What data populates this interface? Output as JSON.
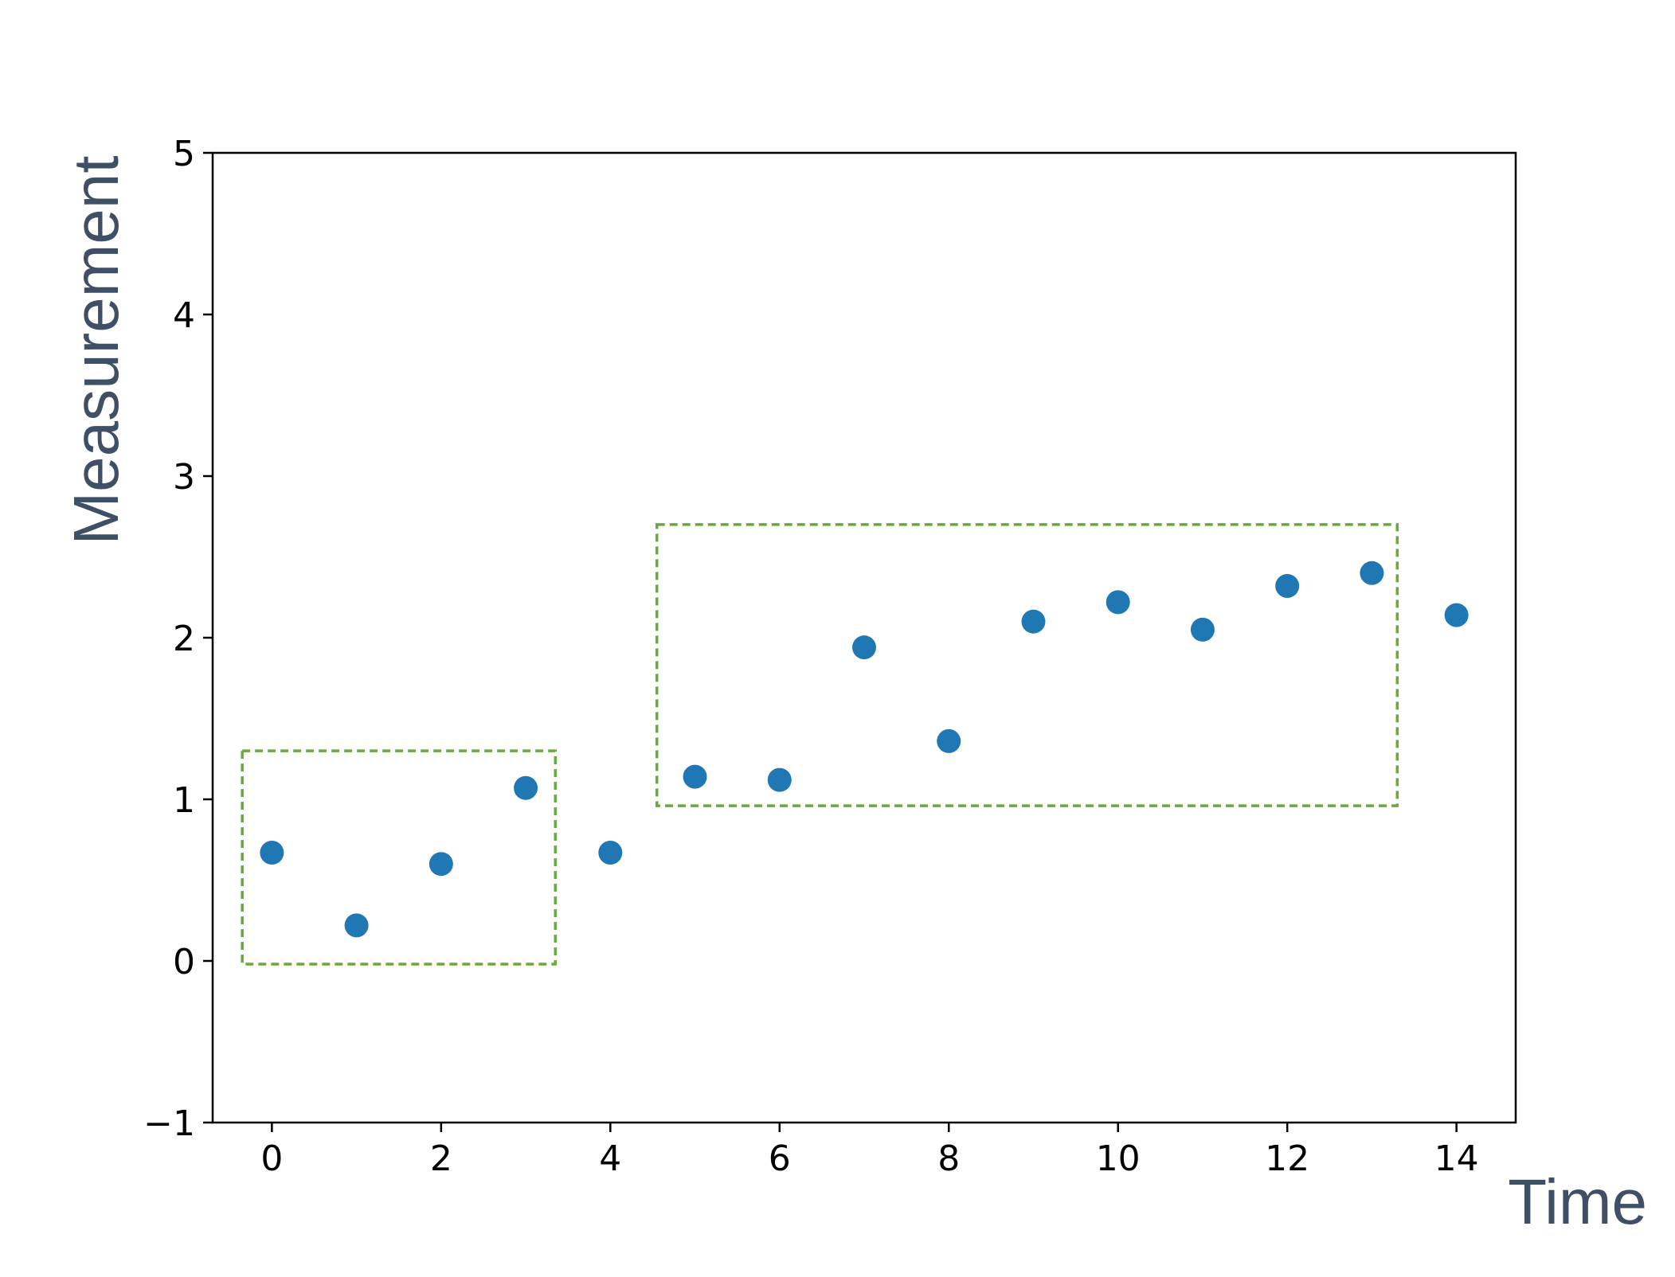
{
  "chart_data": {
    "type": "scatter",
    "title": "",
    "xlabel": "Time",
    "ylabel": "Measurement",
    "xlim": [
      -0.7,
      14.7
    ],
    "ylim": [
      -1,
      5
    ],
    "xticks": [
      0,
      2,
      4,
      6,
      8,
      10,
      12,
      14
    ],
    "xtick_labels": [
      "0",
      "2",
      "4",
      "6",
      "8",
      "10",
      "12",
      "14"
    ],
    "yticks": [
      -1,
      0,
      1,
      2,
      3,
      4,
      5
    ],
    "ytick_labels": [
      "−1",
      "0",
      "1",
      "2",
      "3",
      "4",
      "5"
    ],
    "grid": false,
    "legend": "none",
    "series": [
      {
        "color": "#1f77b4",
        "x": [
          0,
          1,
          2,
          3,
          4,
          5,
          6,
          7,
          8,
          9,
          10,
          11,
          12,
          13,
          14
        ],
        "y": [
          0.67,
          0.22,
          0.6,
          1.07,
          0.67,
          1.14,
          1.12,
          1.94,
          1.36,
          2.1,
          2.22,
          2.05,
          2.32,
          2.4,
          2.14
        ]
      }
    ],
    "annotations": [
      {
        "type": "dashed-box",
        "color": "#6aaa3a",
        "x0": -0.35,
        "x1": 3.35,
        "y0": -0.02,
        "y1": 1.3
      },
      {
        "type": "dashed-box",
        "color": "#6aaa3a",
        "x0": 4.55,
        "x1": 13.3,
        "y0": 0.96,
        "y1": 2.7
      }
    ],
    "axis_title_color": "#3f4f66"
  }
}
